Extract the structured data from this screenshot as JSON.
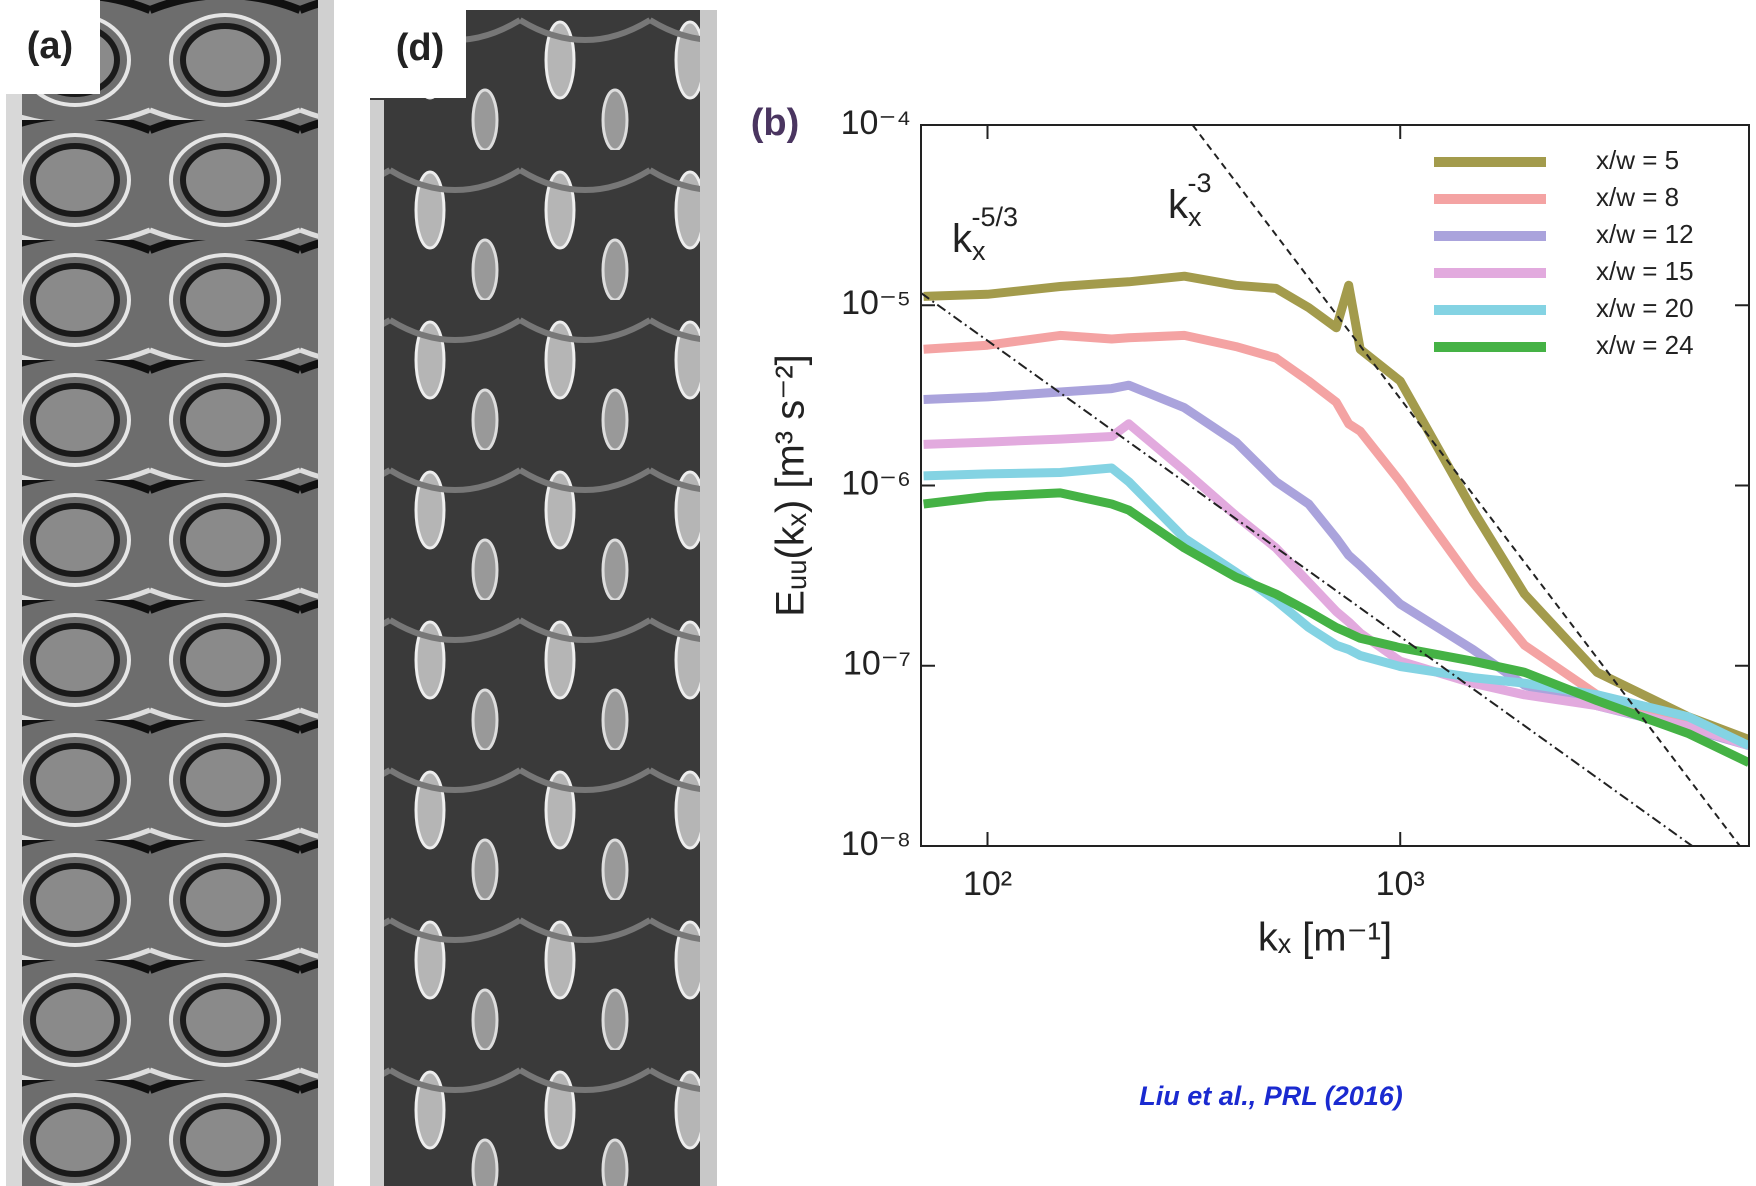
{
  "panels": [
    {
      "label": "(a)"
    },
    {
      "label": "(d)"
    }
  ],
  "chart_data": {
    "type": "line",
    "title": "(b)",
    "x_label": "kₓ  [m⁻¹]",
    "y_label": "Eᵤᵤ(kₓ)  [m³ s⁻²]",
    "x_scale": "log",
    "y_scale": "log",
    "xlim": [
      69,
      7000
    ],
    "ylim": [
      1e-08,
      0.0001
    ],
    "xticks": [
      {
        "value": 100,
        "label": "10²"
      },
      {
        "value": 1000,
        "label": "10³"
      }
    ],
    "yticks": [
      {
        "value": 1e-08,
        "label": "10⁻⁸"
      },
      {
        "value": 1e-07,
        "label": "10⁻⁷"
      },
      {
        "value": 1e-06,
        "label": "10⁻⁶"
      },
      {
        "value": 1e-05,
        "label": "10⁻⁵"
      },
      {
        "value": 0.0001,
        "label": "10⁻⁴"
      }
    ],
    "legend": "upper right",
    "x": [
      70,
      100,
      150,
      200,
      220,
      300,
      400,
      500,
      600,
      700,
      750,
      800,
      1000,
      1500,
      2000,
      3000,
      5000,
      7000
    ],
    "series": [
      {
        "name": "x/w = 5",
        "color": "#a39b4c",
        "values": [
          1.12e-05,
          1.15e-05,
          1.27e-05,
          1.33e-05,
          1.35e-05,
          1.45e-05,
          1.29e-05,
          1.24e-05,
          9.7e-06,
          7.5e-06,
          1.29e-05,
          5.7e-06,
          3.8e-06,
          7.3e-07,
          2.5e-07,
          9.2e-08,
          5.2e-08,
          3.9e-08
        ]
      },
      {
        "name": "x/w = 8",
        "color": "#f4a3a3",
        "values": [
          5.7e-06,
          6e-06,
          6.8e-06,
          6.5e-06,
          6.6e-06,
          6.8e-06,
          5.9e-06,
          5.1e-06,
          3.8e-06,
          2.9e-06,
          2.2e-06,
          2e-06,
          1.05e-06,
          2.9e-07,
          1.3e-07,
          6.9e-08,
          4.8e-08,
          3.6e-08
        ]
      },
      {
        "name": "x/w = 12",
        "color": "#aaa3dc",
        "values": [
          3e-06,
          3.1e-06,
          3.3e-06,
          3.45e-06,
          3.6e-06,
          2.7e-06,
          1.74e-06,
          1.05e-06,
          7.9e-07,
          5.1e-07,
          4.1e-07,
          3.6e-07,
          2.2e-07,
          1.23e-07,
          7.8e-08,
          6e-08,
          4.5e-08,
          3.6e-08
        ]
      },
      {
        "name": "x/w = 15",
        "color": "#e2aade",
        "values": [
          1.69e-06,
          1.74e-06,
          1.81e-06,
          1.87e-06,
          2.2e-06,
          1.21e-06,
          6.8e-07,
          4.5e-07,
          2.9e-07,
          2e-07,
          1.75e-07,
          1.52e-07,
          1.06e-07,
          8e-08,
          6.9e-08,
          6e-08,
          4.6e-08,
          3.6e-08
        ]
      },
      {
        "name": "x/w = 20",
        "color": "#84d3e3",
        "values": [
          1.13e-06,
          1.16e-06,
          1.18e-06,
          1.25e-06,
          1.05e-06,
          5.1e-07,
          3.3e-07,
          2.3e-07,
          1.63e-07,
          1.3e-07,
          1.23e-07,
          1.14e-07,
          9.9e-08,
          8.6e-08,
          8e-08,
          6.9e-08,
          5.2e-08,
          3.6e-08
        ]
      },
      {
        "name": "x/w = 24",
        "color": "#45b245",
        "values": [
          7.9e-07,
          8.7e-07,
          9.1e-07,
          7.9e-07,
          7.3e-07,
          4.5e-07,
          3.1e-07,
          2.5e-07,
          2e-07,
          1.63e-07,
          1.52e-07,
          1.42e-07,
          1.26e-07,
          1.06e-07,
          9.2e-08,
          6.4e-08,
          4.2e-08,
          2.9e-08
        ]
      }
    ],
    "reference_lines": [
      {
        "x": [
          69,
          5100
        ],
        "values": [
          1.17e-05,
          1e-08
        ],
        "style": "dash-dot"
      },
      {
        "x": [
          314,
          6650
        ],
        "values": [
          0.0001,
          1e-08
        ],
        "style": "dashed"
      }
    ],
    "annotations": [
      {
        "text": "k",
        "sub": "x",
        "sup": "-5/3"
      },
      {
        "text": "k",
        "sub": "x",
        "sup": "-3"
      }
    ]
  },
  "citation": "Liu et al., PRL (2016)"
}
